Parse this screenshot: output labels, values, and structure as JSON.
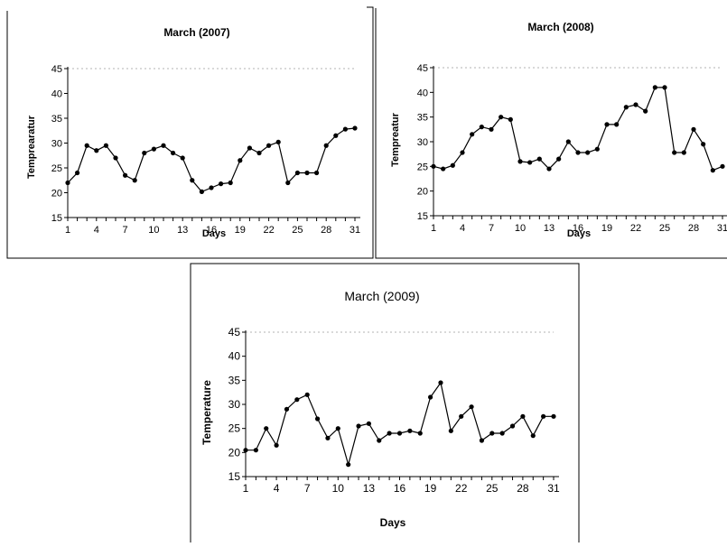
{
  "chart_data": [
    {
      "type": "line",
      "title": "March (2007)",
      "xlabel": "Days",
      "ylabel": "Temprearatur",
      "ylim": [
        15,
        45
      ],
      "yticks": [
        "15",
        "20",
        "25",
        "30",
        "35",
        "40",
        "45"
      ],
      "xticks": [
        "1",
        "4",
        "7",
        "10",
        "13",
        "16",
        "19",
        "22",
        "25",
        "28",
        "31"
      ],
      "x": [
        1,
        2,
        3,
        4,
        5,
        6,
        7,
        8,
        9,
        10,
        11,
        12,
        13,
        14,
        15,
        16,
        17,
        18,
        19,
        20,
        21,
        22,
        23,
        24,
        25,
        26,
        27,
        28,
        29,
        30,
        31
      ],
      "series": [
        {
          "values": [
            22,
            24,
            29.5,
            28.5,
            29.5,
            27,
            23.5,
            22.5,
            28,
            28.8,
            29.5,
            28,
            27,
            22.5,
            20.2,
            21,
            21.8,
            22,
            26.5,
            29,
            28,
            29.5,
            30.2,
            22,
            24,
            24,
            24,
            29.5,
            31.5,
            32.8,
            33
          ]
        }
      ],
      "grid": "dashed top"
    },
    {
      "type": "line",
      "title": "March (2008)",
      "xlabel": "Days",
      "ylabel": "Tempreatur",
      "ylim": [
        15,
        45
      ],
      "yticks": [
        "15",
        "20",
        "25",
        "30",
        "35",
        "40",
        "45"
      ],
      "xticks": [
        "1",
        "4",
        "7",
        "10",
        "13",
        "16",
        "19",
        "22",
        "25",
        "28",
        "31"
      ],
      "x": [
        1,
        2,
        3,
        4,
        5,
        6,
        7,
        8,
        9,
        10,
        11,
        12,
        13,
        14,
        15,
        16,
        17,
        18,
        19,
        20,
        21,
        22,
        23,
        24,
        25,
        26,
        27,
        28,
        29,
        30,
        31
      ],
      "series": [
        {
          "values": [
            25,
            24.5,
            25.2,
            27.8,
            31.5,
            33,
            32.5,
            35,
            34.5,
            26,
            25.8,
            26.5,
            24.5,
            26.5,
            30,
            27.8,
            27.8,
            28.5,
            33.5,
            33.5,
            37,
            37.5,
            36.2,
            41,
            41,
            27.8,
            27.8,
            32.5,
            29.5,
            24.2,
            25
          ]
        }
      ],
      "grid": "dashed top"
    },
    {
      "type": "line",
      "title": "March (2009)",
      "xlabel": "Days",
      "ylabel": "Temperature",
      "ylim": [
        15,
        45
      ],
      "yticks": [
        "15",
        "20",
        "25",
        "30",
        "35",
        "40",
        "45"
      ],
      "xticks": [
        "1",
        "4",
        "7",
        "10",
        "13",
        "16",
        "19",
        "22",
        "25",
        "28",
        "31"
      ],
      "x": [
        1,
        2,
        3,
        4,
        5,
        6,
        7,
        8,
        9,
        10,
        11,
        12,
        13,
        14,
        15,
        16,
        17,
        18,
        19,
        20,
        21,
        22,
        23,
        24,
        25,
        26,
        27,
        28,
        29,
        30,
        31
      ],
      "series": [
        {
          "values": [
            20.5,
            20.5,
            25,
            21.5,
            29,
            31,
            32,
            27,
            23,
            25,
            17.5,
            25.5,
            26,
            22.5,
            24,
            24,
            24.5,
            24,
            31.5,
            34.5,
            24.5,
            27.5,
            29.5,
            22.5,
            24,
            24,
            25.5,
            27.5,
            23.5,
            27.5,
            27.5
          ]
        }
      ],
      "grid": "dashed top"
    }
  ]
}
